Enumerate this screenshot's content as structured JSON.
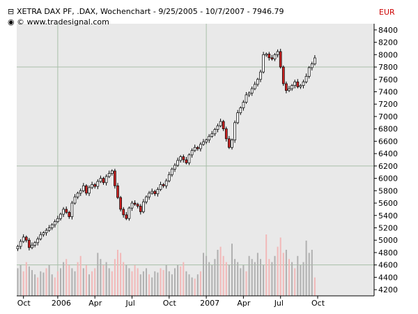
{
  "header": {
    "title": "XETRA DAX PF, .DAX, Wochenchart - 9/25/2005 - 10/7/2007 - 7946.79",
    "copyright": "© www.tradesignal.com",
    "currency": "EUR"
  },
  "colors": {
    "background": "#ffffff",
    "plot_background": "#e9e9e9",
    "grid": "#a9bfa9",
    "up_candle": "#ffffff",
    "down_candle": "#cc2222",
    "candle_outline": "#000000",
    "volume_up": "#b0b0b0",
    "volume_down": "#f2b8b8",
    "currency_text": "#cc0000"
  },
  "chart_data": {
    "type": "candlestick",
    "title": "XETRA DAX PF, .DAX, Wochenchart - 9/25/2005 - 10/7/2007 - 7946.79",
    "interval": "weekly",
    "y_axis": {
      "label": "EUR",
      "ylim": [
        4100,
        8500
      ],
      "ticks": [
        4200,
        4400,
        4600,
        4800,
        5000,
        5200,
        5400,
        5600,
        5800,
        6000,
        6200,
        6400,
        6600,
        6800,
        7000,
        7200,
        7400,
        7600,
        7800,
        8000,
        8200,
        8400
      ],
      "grid_lines": [
        4600,
        6200,
        7800
      ]
    },
    "x_axis": {
      "ticks": [
        {
          "label": "Oct",
          "week": 2
        },
        {
          "label": "2006",
          "week": 14
        },
        {
          "label": "Apr",
          "week": 27
        },
        {
          "label": "Jul",
          "week": 40
        },
        {
          "label": "Oct",
          "week": 53
        },
        {
          "label": "2007",
          "week": 66
        },
        {
          "label": "Apr",
          "week": 79
        },
        {
          "label": "Jul",
          "week": 92
        },
        {
          "label": "Oct",
          "week": 105
        }
      ],
      "grid_weeks": [
        14,
        66
      ]
    },
    "close": [
      4900,
      4980,
      5050,
      5000,
      4880,
      4920,
      4960,
      5020,
      5090,
      5120,
      5160,
      5200,
      5250,
      5300,
      5350,
      5420,
      5500,
      5450,
      5380,
      5600,
      5700,
      5760,
      5800,
      5880,
      5760,
      5850,
      5900,
      5870,
      5950,
      6000,
      5930,
      6030,
      6080,
      6120,
      5880,
      5690,
      5500,
      5410,
      5350,
      5520,
      5600,
      5580,
      5550,
      5460,
      5620,
      5700,
      5760,
      5790,
      5750,
      5820,
      5900,
      5880,
      5960,
      6060,
      6150,
      6210,
      6290,
      6350,
      6300,
      6250,
      6380,
      6450,
      6500,
      6480,
      6550,
      6590,
      6620,
      6680,
      6720,
      6790,
      6850,
      6920,
      6800,
      6640,
      6500,
      6620,
      6900,
      7060,
      7140,
      7230,
      7350,
      7380,
      7450,
      7520,
      7600,
      7720,
      8000,
      8010,
      7950,
      7930,
      8000,
      8050,
      7800,
      7530,
      7420,
      7450,
      7500,
      7560,
      7480,
      7500,
      7560,
      7650,
      7790,
      7850,
      7947
    ],
    "volume_direction": [
      "up",
      "up",
      "down",
      "down",
      "up",
      "up",
      "up",
      "down",
      "up",
      "up",
      "down",
      "up",
      "up",
      "down",
      "down",
      "up",
      "up",
      "down",
      "down",
      "up",
      "up",
      "down",
      "down",
      "up",
      "down",
      "up",
      "down",
      "down",
      "up",
      "up",
      "down",
      "up",
      "up",
      "down",
      "down",
      "down",
      "down",
      "down",
      "up",
      "up",
      "down",
      "down",
      "down",
      "up",
      "up",
      "up",
      "down",
      "up",
      "up",
      "up",
      "down",
      "down",
      "up",
      "up",
      "up",
      "up",
      "up",
      "down",
      "down",
      "up",
      "up",
      "up",
      "down",
      "up",
      "down",
      "up",
      "up",
      "up",
      "up",
      "up",
      "up",
      "down",
      "down",
      "down",
      "up",
      "up",
      "up",
      "up",
      "up",
      "up",
      "down",
      "up",
      "up",
      "up",
      "up",
      "up",
      "up",
      "down",
      "down",
      "up",
      "up",
      "down",
      "down",
      "down",
      "up",
      "down",
      "up",
      "down",
      "up",
      "up",
      "up",
      "up",
      "up",
      "up",
      "down"
    ],
    "volume_relative": [
      0.45,
      0.5,
      0.4,
      0.55,
      0.48,
      0.42,
      0.35,
      0.3,
      0.4,
      0.38,
      0.45,
      0.5,
      0.35,
      0.3,
      0.4,
      0.45,
      0.55,
      0.6,
      0.5,
      0.45,
      0.4,
      0.55,
      0.65,
      0.45,
      0.5,
      0.35,
      0.4,
      0.45,
      0.7,
      0.6,
      0.5,
      0.55,
      0.45,
      0.4,
      0.6,
      0.75,
      0.7,
      0.55,
      0.5,
      0.45,
      0.4,
      0.5,
      0.45,
      0.35,
      0.4,
      0.45,
      0.35,
      0.3,
      0.4,
      0.38,
      0.45,
      0.42,
      0.5,
      0.4,
      0.35,
      0.45,
      0.5,
      0.48,
      0.55,
      0.4,
      0.35,
      0.3,
      0.28,
      0.35,
      0.4,
      0.7,
      0.65,
      0.55,
      0.5,
      0.6,
      0.75,
      0.8,
      0.65,
      0.55,
      0.5,
      0.85,
      0.6,
      0.55,
      0.45,
      0.5,
      0.4,
      0.65,
      0.6,
      0.55,
      0.7,
      0.6,
      0.5,
      1.0,
      0.6,
      0.55,
      0.65,
      0.8,
      0.95,
      0.7,
      0.75,
      0.6,
      0.55,
      0.45,
      0.65,
      0.5,
      0.55,
      0.9,
      0.7,
      0.75,
      0.3
    ]
  }
}
